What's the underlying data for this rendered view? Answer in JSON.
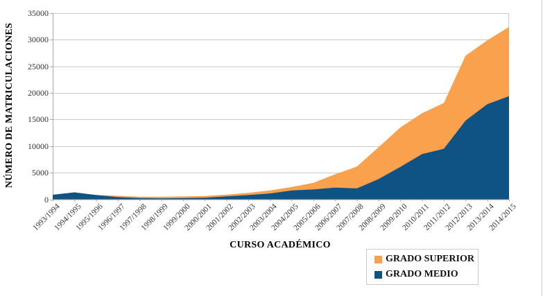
{
  "chart_data": {
    "type": "area",
    "stacked": true,
    "title": "",
    "xlabel": "CURSO ACADÉMICO",
    "ylabel": "NÚMERO DE MATRICULACIONES",
    "grid": true,
    "legend_position": "bottom-right",
    "ylim": [
      0,
      35000
    ],
    "yticks": [
      0,
      5000,
      10000,
      15000,
      20000,
      25000,
      30000,
      35000
    ],
    "categories": [
      "1993/1994",
      "1994/1995",
      "1995/1996",
      "1996/1997",
      "1997/1998",
      "1998/1999",
      "1999/2000",
      "2000/2001",
      "2001/2002",
      "2002/2003",
      "2003/2004",
      "2004/2005",
      "2005/2006",
      "2006/2007",
      "2007/2008",
      "2008/2009",
      "2009/2010",
      "2010/2011",
      "2011/2012",
      "2012/2013",
      "2013/2014",
      "2014/2015"
    ],
    "series": [
      {
        "name": "GRADO SUPERIOR",
        "color": "#F9A14C",
        "values": [
          0,
          0,
          30,
          250,
          280,
          300,
          300,
          320,
          340,
          400,
          570,
          660,
          1230,
          2500,
          4100,
          6000,
          7400,
          7700,
          8600,
          12200,
          12000,
          13000
        ]
      },
      {
        "name": "GRADO MEDIO",
        "color": "#0F5284",
        "values": [
          850,
          1300,
          800,
          400,
          220,
          180,
          230,
          300,
          550,
          800,
          1100,
          1650,
          1870,
          2200,
          2050,
          3800,
          6100,
          8500,
          9500,
          14800,
          17900,
          19400
        ]
      }
    ],
    "colors": {
      "gridline": "#c9c9c9",
      "axis_line": "#a8a8a8",
      "legend_border": "#c9c9c9"
    }
  }
}
